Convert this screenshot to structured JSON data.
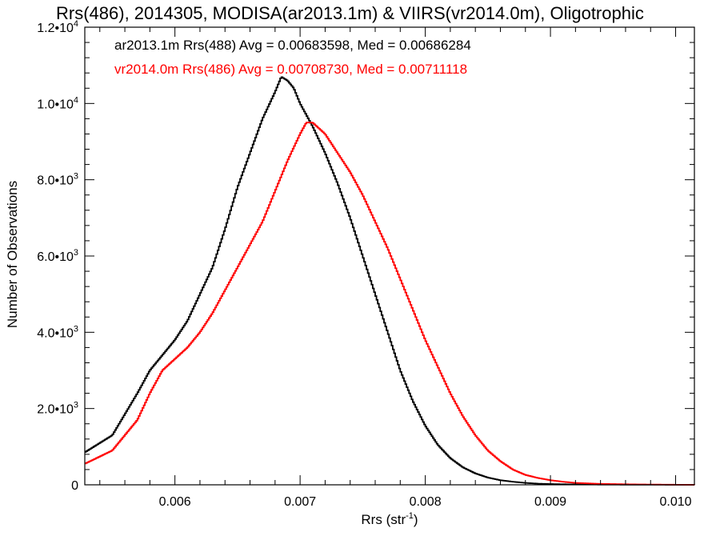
{
  "chart_data": {
    "type": "line",
    "title": "Rrs(486), 2014305, MODISA(ar2013.1m) & VIIRS(vr2014.0m), Oligotrophic",
    "xlabel_main": "Rrs (str",
    "xlabel_sup": "-1",
    "xlabel_close": ")",
    "ylabel": "Number of Observations",
    "xlim": [
      0.00528,
      0.01015
    ],
    "ylim": [
      0,
      12000
    ],
    "x_ticks": [
      {
        "value": 0.006,
        "label": "0.006"
      },
      {
        "value": 0.007,
        "label": "0.007"
      },
      {
        "value": 0.008,
        "label": "0.008"
      },
      {
        "value": 0.009,
        "label": "0.009"
      },
      {
        "value": 0.01,
        "label": "0.010"
      }
    ],
    "y_ticks": [
      {
        "value": 0,
        "mant": "0",
        "exp": ""
      },
      {
        "value": 2000,
        "mant": "2.0•10",
        "exp": "3"
      },
      {
        "value": 4000,
        "mant": "4.0•10",
        "exp": "3"
      },
      {
        "value": 6000,
        "mant": "6.0•10",
        "exp": "3"
      },
      {
        "value": 8000,
        "mant": "8.0•10",
        "exp": "3"
      },
      {
        "value": 10000,
        "mant": "1.0•10",
        "exp": "4"
      },
      {
        "value": 12000,
        "mant": "1.2•10",
        "exp": "4"
      }
    ],
    "legend_placement": "top-left",
    "series": [
      {
        "name": "ar2013.1m Rrs(488) Avg = 0.00683598, Med = 0.00686284",
        "color": "#000000",
        "x": [
          0.00528,
          0.0055,
          0.0057,
          0.0058,
          0.0059,
          0.006,
          0.0061,
          0.0062,
          0.0063,
          0.0064,
          0.0065,
          0.0066,
          0.0067,
          0.0068,
          0.00685,
          0.0069,
          0.00695,
          0.007,
          0.0071,
          0.0072,
          0.0073,
          0.0074,
          0.0075,
          0.0076,
          0.0077,
          0.0078,
          0.0079,
          0.008,
          0.0081,
          0.0082,
          0.0083,
          0.0084,
          0.0085,
          0.0086,
          0.0087,
          0.0088,
          0.0089,
          0.009,
          0.0092,
          0.0095,
          0.01015
        ],
        "y": [
          850,
          1300,
          2400,
          3000,
          3400,
          3800,
          4300,
          5000,
          5700,
          6700,
          7800,
          8700,
          9600,
          10300,
          10700,
          10600,
          10400,
          10000,
          9400,
          8700,
          7900,
          7000,
          6000,
          5000,
          4000,
          3000,
          2200,
          1550,
          1050,
          700,
          460,
          300,
          190,
          120,
          80,
          50,
          30,
          20,
          10,
          5,
          0
        ]
      },
      {
        "name": "vr2014.0m Rrs(486) Avg = 0.00708730, Med = 0.00711118",
        "color": "#ff0000",
        "x": [
          0.00528,
          0.0055,
          0.0057,
          0.0058,
          0.0059,
          0.006,
          0.0061,
          0.0062,
          0.0063,
          0.0064,
          0.0065,
          0.0066,
          0.0067,
          0.0068,
          0.0069,
          0.007,
          0.00705,
          0.0071,
          0.0072,
          0.0073,
          0.0074,
          0.0075,
          0.0076,
          0.0077,
          0.0078,
          0.0079,
          0.008,
          0.0081,
          0.0082,
          0.0083,
          0.0084,
          0.0085,
          0.0086,
          0.0087,
          0.0088,
          0.0089,
          0.009,
          0.0091,
          0.0092,
          0.0094,
          0.0097,
          0.01015
        ],
        "y": [
          550,
          900,
          1700,
          2400,
          3000,
          3300,
          3600,
          4000,
          4500,
          5100,
          5700,
          6300,
          6900,
          7700,
          8500,
          9200,
          9500,
          9500,
          9200,
          8700,
          8200,
          7600,
          6900,
          6200,
          5400,
          4600,
          3800,
          3100,
          2400,
          1800,
          1300,
          900,
          620,
          400,
          260,
          180,
          120,
          80,
          50,
          25,
          10,
          0
        ]
      }
    ]
  }
}
